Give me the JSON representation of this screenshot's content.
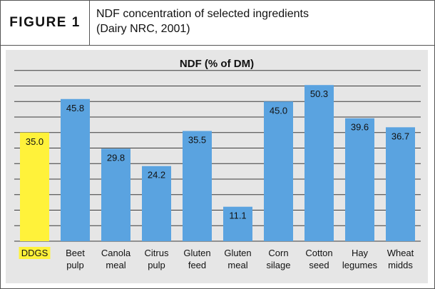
{
  "figure": {
    "label": "FIGURE 1",
    "title_line1": "NDF concentration of selected ingredients",
    "title_line2": "(Dairy NRC, 2001)"
  },
  "colors": {
    "default_bar": "#5aa3e0",
    "highlight_bar": "#fff23a",
    "highlight_label_bg": "#fff23a",
    "gridline": "#3a3a3a",
    "panel_bg": "#e6e6e6"
  },
  "chart_data": {
    "type": "bar",
    "title": "NDF (% of DM)",
    "xlabel": "",
    "ylabel": "",
    "ylim": [
      0,
      60
    ],
    "grid": true,
    "gridline_step": 5,
    "highlight_index": 0,
    "categories": [
      [
        "DDGS"
      ],
      [
        "Beet",
        "pulp"
      ],
      [
        "Canola",
        "meal"
      ],
      [
        "Citrus",
        "pulp"
      ],
      [
        "Gluten",
        "feed"
      ],
      [
        "Gluten",
        "meal"
      ],
      [
        "Corn",
        "silage"
      ],
      [
        "Cotton",
        "seed"
      ],
      [
        "Hay",
        "legumes"
      ],
      [
        "Wheat",
        "midds"
      ]
    ],
    "values": [
      35.0,
      45.8,
      29.8,
      24.2,
      35.5,
      11.1,
      45.0,
      50.3,
      39.6,
      36.7
    ],
    "value_labels": [
      "35.0",
      "45.8",
      "29.8",
      "24.2",
      "35.5",
      "11.1",
      "45.0",
      "50.3",
      "39.6",
      "36.7"
    ]
  }
}
